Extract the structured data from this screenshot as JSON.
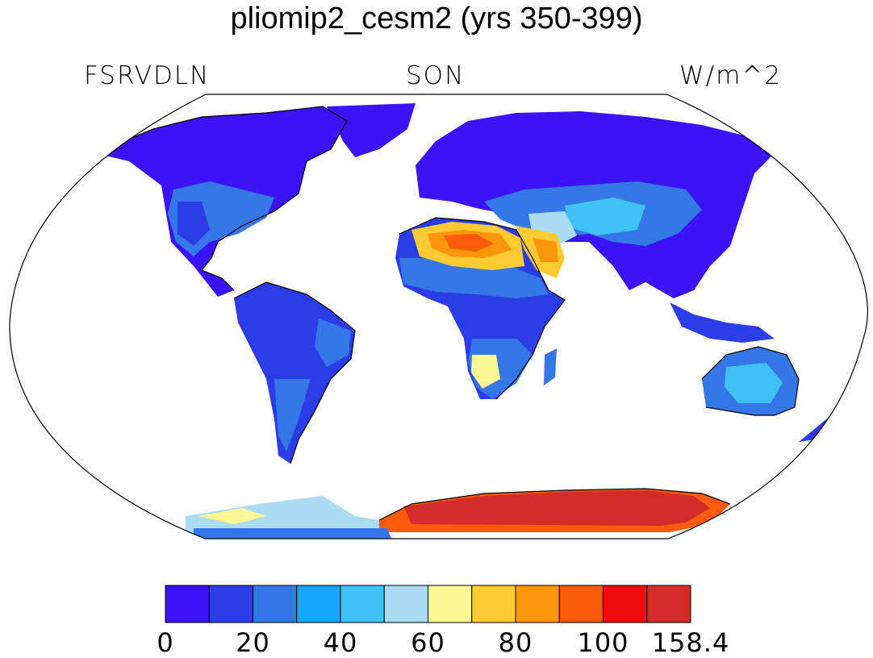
{
  "header": {
    "title": "pliomip2_cesm2 (yrs 350-399)",
    "variable": "FSRVDLN",
    "season": "SON",
    "units": "W/m^2"
  },
  "colorbar": {
    "colors": [
      "#3a14f5",
      "#2a3de6",
      "#3577e6",
      "#17a4fb",
      "#40c1f6",
      "#a9dbf3",
      "#fef692",
      "#fdcb31",
      "#fb950a",
      "#fb5a0a",
      "#ef0c0c",
      "#d42b2b"
    ],
    "tick_labels": [
      "0",
      "20",
      "40",
      "60",
      "80",
      "100",
      "158.4"
    ]
  },
  "map": {
    "projection": "Robinson",
    "ocean_color": "#ffffff"
  }
}
